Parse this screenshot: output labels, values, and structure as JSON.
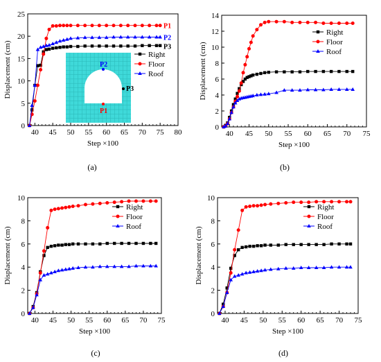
{
  "colors": {
    "right": "#000000",
    "floor": "#ff0000",
    "roof": "#0000ff",
    "inset_fill": "#3fd9d9",
    "inset_grid": "#2bb8b8"
  },
  "chart_data": [
    {
      "type": "line",
      "caption": "(a)",
      "xlabel": "Step ×100",
      "ylabel": "Displacement (cm)",
      "xlim": [
        38,
        80
      ],
      "ylim": [
        0,
        25
      ],
      "xticks": [
        40,
        45,
        50,
        55,
        60,
        65,
        70,
        75,
        80
      ],
      "yticks": [
        0,
        5,
        10,
        15,
        20,
        25
      ],
      "legend": "right",
      "series": [
        {
          "name": "Right",
          "color": "#000000",
          "marker": "square",
          "x": [
            38.5,
            39.2,
            40,
            40.8,
            41.6,
            42.4,
            43.2,
            44,
            45,
            46,
            47,
            48,
            49,
            50,
            52,
            54,
            56,
            58,
            60,
            62,
            64,
            66,
            68,
            70,
            72,
            74,
            75
          ],
          "y": [
            0,
            3.5,
            9,
            13.4,
            13.5,
            16.5,
            17,
            17.1,
            17.3,
            17.4,
            17.5,
            17.6,
            17.6,
            17.7,
            17.7,
            17.8,
            17.8,
            17.8,
            17.8,
            17.8,
            17.8,
            17.8,
            17.8,
            17.9,
            17.9,
            17.9,
            17.9
          ]
        },
        {
          "name": "Floor",
          "color": "#ff0000",
          "marker": "circle",
          "x": [
            38.5,
            39.2,
            40,
            40.8,
            41.6,
            42.4,
            43.2,
            44,
            45,
            46,
            47,
            48,
            49,
            50,
            52,
            54,
            56,
            58,
            60,
            62,
            64,
            66,
            68,
            70,
            72,
            74,
            75
          ],
          "y": [
            0,
            2.5,
            5.5,
            9,
            12.5,
            16,
            19.5,
            21.5,
            22.3,
            22.3,
            22.4,
            22.4,
            22.4,
            22.4,
            22.4,
            22.4,
            22.4,
            22.4,
            22.4,
            22.4,
            22.4,
            22.4,
            22.4,
            22.4,
            22.4,
            22.4,
            22.4
          ]
        },
        {
          "name": "Roof",
          "color": "#0000ff",
          "marker": "triangle",
          "x": [
            38.5,
            39.2,
            40,
            40.8,
            41.6,
            42.4,
            43.2,
            44,
            45,
            46,
            47,
            48,
            49,
            50,
            52,
            54,
            56,
            58,
            60,
            62,
            64,
            66,
            68,
            70,
            72,
            74,
            75
          ],
          "y": [
            0,
            4.5,
            9,
            17,
            17.5,
            17.7,
            17.9,
            18,
            18.3,
            18.6,
            18.9,
            19.1,
            19.3,
            19.5,
            19.6,
            19.7,
            19.7,
            19.7,
            19.7,
            19.8,
            19.8,
            19.8,
            19.8,
            19.8,
            19.8,
            19.8,
            19.8
          ]
        }
      ],
      "annotations": [
        "P1",
        "P2",
        "P3"
      ],
      "inset_labels": [
        "P2",
        "P3",
        "P1"
      ]
    },
    {
      "type": "line",
      "caption": "(b)",
      "xlabel": "Step ×100",
      "ylabel": "Displacement (cm)",
      "xlim": [
        38,
        75
      ],
      "ylim": [
        0,
        14
      ],
      "xticks": [
        40,
        45,
        50,
        55,
        60,
        65,
        70,
        75
      ],
      "yticks": [
        0,
        2,
        4,
        6,
        8,
        10,
        12,
        14
      ],
      "legend": "right",
      "series": [
        {
          "name": "Right",
          "color": "#000000",
          "marker": "square",
          "x": [
            38.5,
            39,
            39.5,
            40,
            40.5,
            41,
            41.5,
            42,
            42.5,
            43,
            43.5,
            44,
            44.5,
            45,
            45.5,
            46,
            47,
            48,
            49,
            50,
            52,
            54,
            56,
            58,
            60,
            62,
            64,
            66,
            68,
            70,
            71.5
          ],
          "y": [
            0,
            0.2,
            0.5,
            1.2,
            2.0,
            2.8,
            3.5,
            4.2,
            4.8,
            5.3,
            5.7,
            6.0,
            6.2,
            6.3,
            6.4,
            6.5,
            6.6,
            6.7,
            6.8,
            6.85,
            6.9,
            6.9,
            6.9,
            6.9,
            6.95,
            6.95,
            6.95,
            6.95,
            6.95,
            6.95,
            6.95
          ]
        },
        {
          "name": "Floor",
          "color": "#ff0000",
          "marker": "circle",
          "x": [
            38.5,
            39,
            39.5,
            40,
            40.5,
            41,
            41.5,
            42,
            42.5,
            43,
            43.5,
            44,
            44.5,
            45,
            45.5,
            46,
            47,
            48,
            49,
            50,
            52,
            54,
            56,
            58,
            60,
            62,
            64,
            66,
            68,
            70,
            71.5
          ],
          "y": [
            0,
            0.1,
            0.4,
            1.0,
            1.8,
            2.5,
            3.2,
            3.8,
            4.5,
            5.5,
            6.8,
            7.8,
            8.8,
            9.8,
            10.6,
            11.4,
            12.2,
            12.8,
            13.1,
            13.2,
            13.2,
            13.2,
            13.1,
            13.1,
            13.1,
            13.1,
            13.0,
            13.0,
            13.0,
            13.0,
            13.0
          ]
        },
        {
          "name": "Roof",
          "color": "#0000ff",
          "marker": "triangle",
          "x": [
            38.5,
            39,
            39.5,
            40,
            40.5,
            41,
            41.5,
            42,
            42.5,
            43,
            43.5,
            44,
            44.5,
            45,
            45.5,
            46,
            47,
            48,
            49,
            50,
            52,
            54,
            56,
            58,
            60,
            62,
            64,
            66,
            68,
            70,
            71.5
          ],
          "y": [
            0,
            0.1,
            0.4,
            1.0,
            1.8,
            2.5,
            3.0,
            3.3,
            3.5,
            3.6,
            3.65,
            3.7,
            3.75,
            3.8,
            3.85,
            3.9,
            4.0,
            4.05,
            4.1,
            4.15,
            4.3,
            4.6,
            4.6,
            4.6,
            4.65,
            4.65,
            4.65,
            4.7,
            4.7,
            4.7,
            4.7
          ]
        }
      ]
    },
    {
      "type": "line",
      "caption": "(c)",
      "xlabel": "Step ×100",
      "ylabel": "Displacement (cm)",
      "xlim": [
        38,
        75
      ],
      "ylim": [
        0,
        10
      ],
      "xticks": [
        40,
        45,
        50,
        55,
        60,
        65,
        70,
        75
      ],
      "yticks": [
        0,
        2,
        4,
        6,
        8,
        10
      ],
      "legend": "right",
      "series": [
        {
          "name": "Right",
          "color": "#000000",
          "marker": "square",
          "x": [
            38.5,
            39.5,
            40.5,
            41.5,
            42.5,
            43.5,
            44.5,
            45.5,
            46.5,
            47.5,
            48.5,
            49.5,
            50.5,
            52,
            54,
            56,
            58,
            60,
            62,
            64,
            66,
            68,
            70,
            72,
            73.5
          ],
          "y": [
            0,
            0.6,
            1.8,
            3.6,
            5.0,
            5.7,
            5.8,
            5.85,
            5.9,
            5.9,
            5.95,
            5.95,
            6.0,
            6.0,
            6.0,
            6.0,
            6.0,
            6.05,
            6.05,
            6.05,
            6.05,
            6.05,
            6.05,
            6.05,
            6.05
          ]
        },
        {
          "name": "Floor",
          "color": "#ff0000",
          "marker": "circle",
          "x": [
            38.5,
            39.5,
            40.5,
            41.5,
            42.5,
            43.5,
            44.5,
            45.5,
            46.5,
            47.5,
            48.5,
            49.5,
            50.5,
            52,
            54,
            56,
            58,
            60,
            62,
            64,
            66,
            68,
            70,
            72,
            73.5
          ],
          "y": [
            0,
            0.5,
            1.7,
            3.5,
            5.4,
            7.4,
            8.9,
            9.0,
            9.05,
            9.1,
            9.15,
            9.2,
            9.25,
            9.3,
            9.4,
            9.45,
            9.5,
            9.55,
            9.6,
            9.65,
            9.7,
            9.7,
            9.7,
            9.7,
            9.7
          ]
        },
        {
          "name": "Roof",
          "color": "#0000ff",
          "marker": "triangle",
          "x": [
            38.5,
            39.5,
            40.5,
            41.5,
            42.5,
            43.5,
            44.5,
            45.5,
            46.5,
            47.5,
            48.5,
            49.5,
            50.5,
            52,
            54,
            56,
            58,
            60,
            62,
            64,
            66,
            68,
            70,
            72,
            73.5
          ],
          "y": [
            0,
            0.5,
            1.6,
            2.9,
            3.3,
            3.4,
            3.5,
            3.6,
            3.7,
            3.75,
            3.8,
            3.85,
            3.9,
            3.95,
            4.0,
            4.0,
            4.05,
            4.05,
            4.05,
            4.05,
            4.05,
            4.1,
            4.1,
            4.1,
            4.1
          ]
        }
      ]
    },
    {
      "type": "line",
      "caption": "(d)",
      "xlabel": "Step ×100",
      "ylabel": "Displacement (cm)",
      "xlim": [
        38,
        75
      ],
      "ylim": [
        0,
        10
      ],
      "xticks": [
        40,
        45,
        50,
        55,
        60,
        65,
        70,
        75
      ],
      "yticks": [
        0,
        2,
        4,
        6,
        8,
        10
      ],
      "legend": "right",
      "series": [
        {
          "name": "Right",
          "color": "#000000",
          "marker": "square",
          "x": [
            38.5,
            39.5,
            40.5,
            41.5,
            42.5,
            43.5,
            44.5,
            45.5,
            46.5,
            47.5,
            48.5,
            49.5,
            50.5,
            52,
            54,
            56,
            58,
            60,
            62,
            64,
            66,
            68,
            70,
            72,
            73
          ],
          "y": [
            0,
            0.8,
            2.2,
            3.9,
            5.0,
            5.5,
            5.7,
            5.75,
            5.8,
            5.8,
            5.85,
            5.85,
            5.9,
            5.9,
            5.9,
            5.95,
            5.95,
            5.95,
            5.95,
            5.95,
            5.95,
            6.0,
            6.0,
            6.0,
            6.0
          ]
        },
        {
          "name": "Floor",
          "color": "#ff0000",
          "marker": "circle",
          "x": [
            38.5,
            39.5,
            40.5,
            41.5,
            42.5,
            43.5,
            44.5,
            45.5,
            46.5,
            47.5,
            48.5,
            49.5,
            50.5,
            52,
            54,
            56,
            58,
            60,
            62,
            64,
            66,
            68,
            70,
            72,
            73
          ],
          "y": [
            0,
            0.6,
            1.8,
            3.5,
            5.5,
            7.2,
            8.9,
            9.2,
            9.25,
            9.3,
            9.3,
            9.35,
            9.4,
            9.45,
            9.5,
            9.55,
            9.6,
            9.6,
            9.6,
            9.65,
            9.65,
            9.65,
            9.65,
            9.65,
            9.65
          ]
        },
        {
          "name": "Roof",
          "color": "#0000ff",
          "marker": "triangle",
          "x": [
            38.5,
            39.5,
            40.5,
            41.5,
            42.5,
            43.5,
            44.5,
            45.5,
            46.5,
            47.5,
            48.5,
            49.5,
            50.5,
            52,
            54,
            56,
            58,
            60,
            62,
            64,
            66,
            68,
            70,
            72,
            73
          ],
          "y": [
            0,
            0.6,
            1.8,
            2.9,
            3.2,
            3.3,
            3.4,
            3.5,
            3.55,
            3.6,
            3.65,
            3.7,
            3.75,
            3.8,
            3.85,
            3.9,
            3.9,
            3.95,
            3.95,
            3.95,
            3.95,
            4.0,
            4.0,
            4.0,
            4.0
          ]
        }
      ]
    }
  ]
}
